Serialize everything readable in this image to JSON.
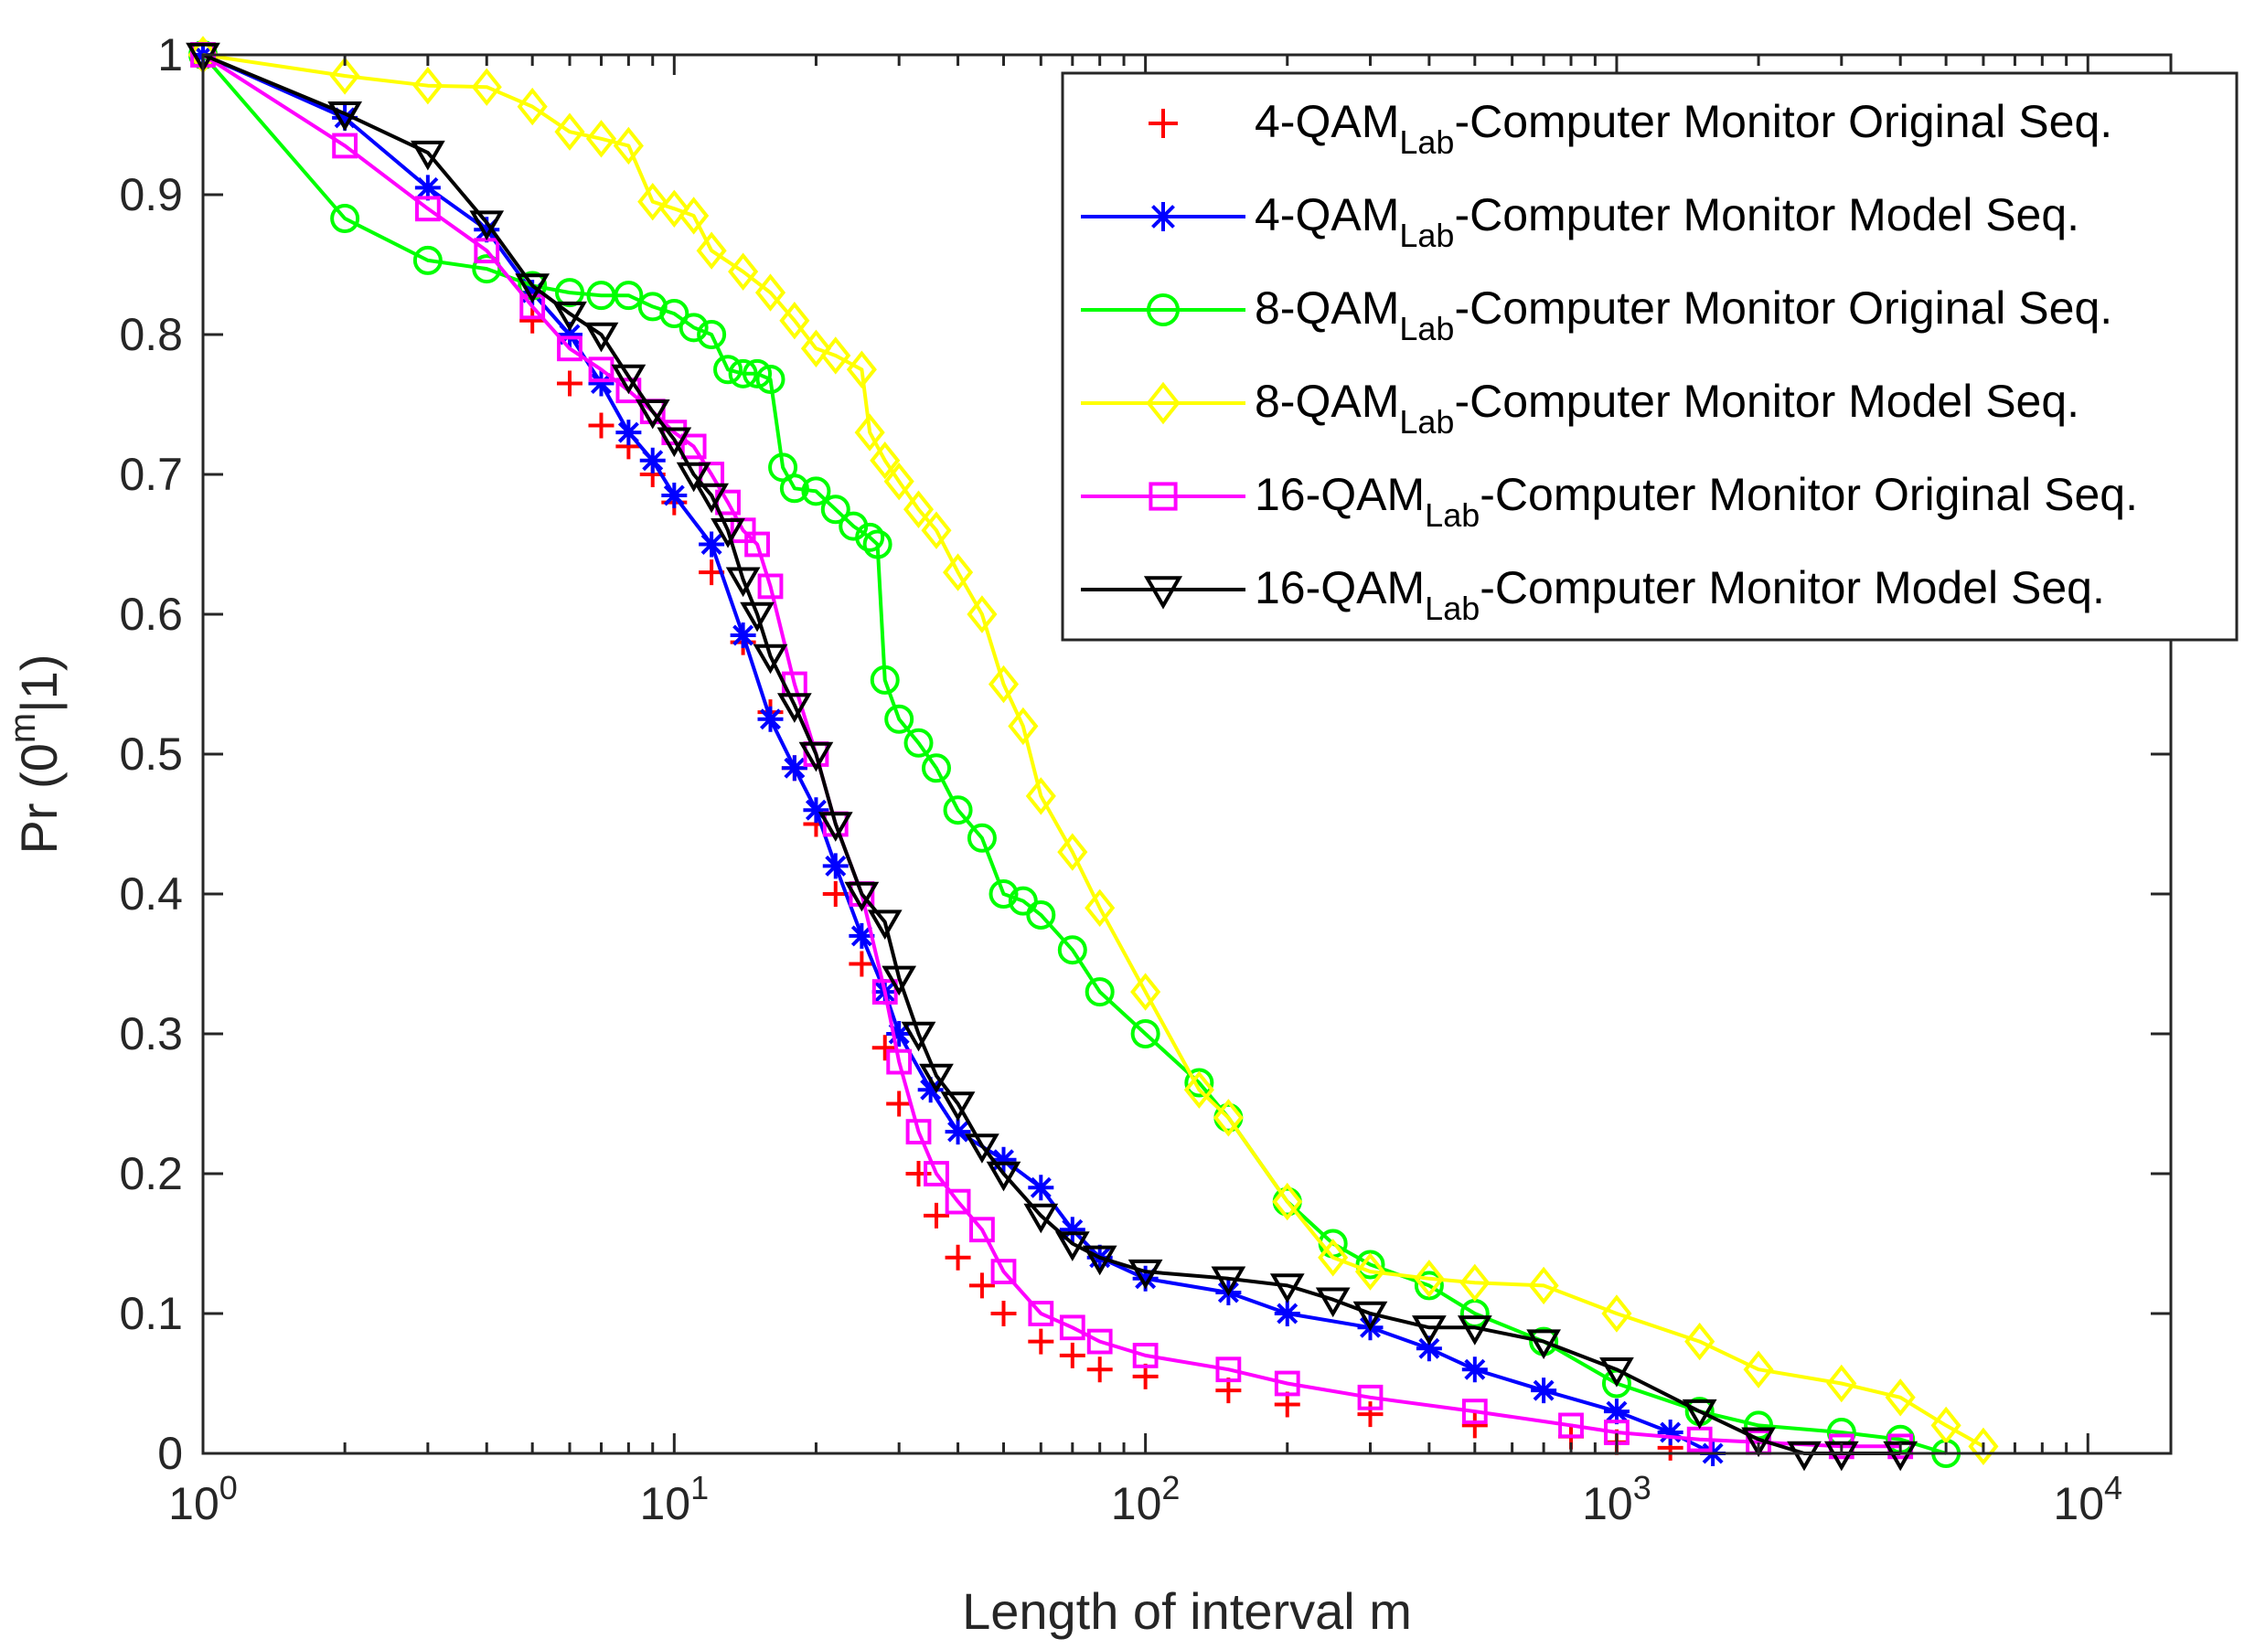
{
  "chart_data": {
    "type": "line",
    "xscale": "log",
    "xlim": [
      1,
      15000
    ],
    "ylim": [
      0,
      1
    ],
    "xlabel": "Length of interval m",
    "ylabel": "Pr (0^m|1)",
    "ylabel_parts": {
      "base": "Pr (0",
      "sup": "m",
      "tail": "|1)"
    },
    "xticks": [
      {
        "value": 1,
        "base": "10",
        "exp": "0"
      },
      {
        "value": 10,
        "base": "10",
        "exp": "1"
      },
      {
        "value": 100,
        "base": "10",
        "exp": "2"
      },
      {
        "value": 1000,
        "base": "10",
        "exp": "3"
      },
      {
        "value": 10000,
        "base": "10",
        "exp": "4"
      }
    ],
    "yticks": [
      {
        "value": 0,
        "label": "0"
      },
      {
        "value": 0.1,
        "label": "0.1"
      },
      {
        "value": 0.2,
        "label": "0.2"
      },
      {
        "value": 0.3,
        "label": "0.3"
      },
      {
        "value": 0.4,
        "label": "0.4"
      },
      {
        "value": 0.5,
        "label": "0.5"
      },
      {
        "value": 0.6,
        "label": "0.6"
      },
      {
        "value": 0.7,
        "label": "0.7"
      },
      {
        "value": 0.8,
        "label": "0.8"
      },
      {
        "value": 0.9,
        "label": "0.9"
      },
      {
        "value": 1,
        "label": "1"
      }
    ],
    "grid": false,
    "legend_position": "top-right",
    "series": [
      {
        "name": "4-QAMLab-Computer Monitor Original Seq.",
        "legend": {
          "pre": "4-QAM",
          "sub": "Lab",
          "post": "-Computer Monitor Original Seq."
        },
        "color": "#ff0000",
        "marker": "plus",
        "line": false,
        "x": [
          1,
          5,
          6,
          7,
          8,
          9,
          10,
          12,
          14,
          16,
          18,
          20,
          22,
          25,
          28,
          30,
          33,
          36,
          40,
          45,
          50,
          60,
          70,
          80,
          100,
          150,
          200,
          300,
          500,
          800,
          1000,
          1300
        ],
        "y": [
          1,
          0.81,
          0.765,
          0.735,
          0.72,
          0.7,
          0.68,
          0.63,
          0.58,
          0.53,
          0.49,
          0.45,
          0.4,
          0.35,
          0.29,
          0.25,
          0.2,
          0.17,
          0.14,
          0.12,
          0.1,
          0.08,
          0.07,
          0.06,
          0.055,
          0.045,
          0.035,
          0.028,
          0.02,
          0.012,
          0.008,
          0.004
        ]
      },
      {
        "name": "4-QAMLab-Computer Monitor Model Seq.",
        "legend": {
          "pre": "4-QAM",
          "sub": "Lab",
          "post": "-Computer Monitor Model Seq."
        },
        "color": "#0000ff",
        "marker": "star",
        "line": true,
        "x": [
          1,
          2,
          3,
          4,
          5,
          6,
          7,
          8,
          9,
          10,
          12,
          14,
          16,
          18,
          20,
          22,
          25,
          28,
          30,
          35,
          40,
          50,
          60,
          70,
          80,
          100,
          150,
          200,
          300,
          400,
          500,
          700,
          1000,
          1300,
          1600
        ],
        "y": [
          1,
          0.955,
          0.905,
          0.875,
          0.83,
          0.8,
          0.765,
          0.73,
          0.71,
          0.685,
          0.65,
          0.585,
          0.525,
          0.49,
          0.46,
          0.42,
          0.37,
          0.33,
          0.3,
          0.26,
          0.23,
          0.21,
          0.19,
          0.16,
          0.14,
          0.125,
          0.115,
          0.1,
          0.09,
          0.075,
          0.06,
          0.045,
          0.03,
          0.015,
          0.0
        ]
      },
      {
        "name": "8-QAMLab-Computer Monitor Original Seq.",
        "legend": {
          "pre": "8-QAM",
          "sub": "Lab",
          "post": "-Computer Monitor Original Seq."
        },
        "color": "#00ff00",
        "marker": "circle",
        "line": true,
        "x": [
          1,
          2,
          3,
          4,
          5,
          6,
          7,
          8,
          9,
          10,
          11,
          12,
          13,
          14,
          15,
          16,
          17,
          18,
          20,
          22,
          24,
          26,
          27,
          28,
          30,
          33,
          36,
          40,
          45,
          50,
          55,
          60,
          70,
          80,
          100,
          130,
          150,
          200,
          250,
          300,
          400,
          500,
          700,
          1000,
          1500,
          2000,
          3000,
          4000,
          5000
        ],
        "y": [
          1,
          0.883,
          0.853,
          0.847,
          0.835,
          0.83,
          0.828,
          0.828,
          0.82,
          0.815,
          0.805,
          0.8,
          0.775,
          0.772,
          0.772,
          0.768,
          0.705,
          0.69,
          0.688,
          0.675,
          0.663,
          0.655,
          0.65,
          0.553,
          0.525,
          0.508,
          0.49,
          0.46,
          0.44,
          0.4,
          0.395,
          0.385,
          0.36,
          0.33,
          0.3,
          0.265,
          0.24,
          0.18,
          0.15,
          0.135,
          0.12,
          0.1,
          0.08,
          0.05,
          0.03,
          0.02,
          0.015,
          0.01,
          0.0
        ]
      },
      {
        "name": "8-QAMLab-Computer Monitor Model Seq.",
        "legend": {
          "pre": "8-QAM",
          "sub": "Lab",
          "post": "-Computer Monitor Model Seq."
        },
        "color": "#ffff00",
        "marker": "diamond",
        "line": true,
        "x": [
          1,
          2,
          3,
          4,
          5,
          6,
          7,
          8,
          9,
          10,
          11,
          12,
          14,
          16,
          18,
          20,
          22,
          25,
          26,
          28,
          30,
          33,
          36,
          40,
          45,
          50,
          55,
          60,
          70,
          80,
          100,
          130,
          150,
          200,
          250,
          300,
          400,
          500,
          700,
          1000,
          1500,
          2000,
          3000,
          4000,
          5000,
          6000
        ],
        "y": [
          1,
          0.985,
          0.978,
          0.977,
          0.963,
          0.945,
          0.94,
          0.935,
          0.895,
          0.89,
          0.885,
          0.86,
          0.845,
          0.83,
          0.81,
          0.79,
          0.785,
          0.775,
          0.73,
          0.71,
          0.695,
          0.675,
          0.66,
          0.63,
          0.6,
          0.55,
          0.52,
          0.47,
          0.43,
          0.39,
          0.33,
          0.26,
          0.24,
          0.18,
          0.14,
          0.13,
          0.125,
          0.122,
          0.12,
          0.1,
          0.08,
          0.06,
          0.05,
          0.04,
          0.02,
          0.005
        ]
      },
      {
        "name": "16-QAMLab-Computer Monitor Original Seq.",
        "legend": {
          "pre": "16-QAM",
          "sub": "Lab",
          "post": "-Computer Monitor Original Seq."
        },
        "color": "#ff00ff",
        "marker": "square",
        "line": true,
        "x": [
          1,
          2,
          3,
          4,
          5,
          6,
          7,
          8,
          9,
          10,
          11,
          12,
          13,
          14,
          15,
          16,
          18,
          20,
          22,
          25,
          28,
          30,
          33,
          36,
          40,
          45,
          50,
          60,
          70,
          80,
          100,
          150,
          200,
          300,
          500,
          800,
          1000,
          1500,
          2000,
          3000,
          4000
        ],
        "y": [
          1,
          0.935,
          0.89,
          0.86,
          0.82,
          0.79,
          0.775,
          0.76,
          0.745,
          0.73,
          0.72,
          0.7,
          0.68,
          0.66,
          0.65,
          0.62,
          0.55,
          0.5,
          0.45,
          0.4,
          0.33,
          0.28,
          0.23,
          0.2,
          0.18,
          0.16,
          0.13,
          0.1,
          0.09,
          0.08,
          0.07,
          0.06,
          0.05,
          0.04,
          0.03,
          0.02,
          0.015,
          0.01,
          0.008,
          0.005,
          0.005
        ]
      },
      {
        "name": "16-QAMLab-Computer Monitor Model Seq.",
        "legend": {
          "pre": "16-QAM",
          "sub": "Lab",
          "post": "-Computer Monitor Model Seq."
        },
        "color": "#000000",
        "marker": "triangle-down",
        "line": true,
        "x": [
          1,
          2,
          3,
          4,
          5,
          6,
          7,
          8,
          9,
          10,
          11,
          12,
          13,
          14,
          15,
          16,
          18,
          20,
          22,
          25,
          28,
          30,
          33,
          36,
          40,
          45,
          50,
          60,
          70,
          80,
          100,
          150,
          200,
          250,
          300,
          400,
          500,
          700,
          1000,
          1500,
          2000,
          2500,
          3000,
          4000
        ],
        "y": [
          1,
          0.958,
          0.93,
          0.88,
          0.835,
          0.815,
          0.8,
          0.77,
          0.745,
          0.725,
          0.7,
          0.685,
          0.66,
          0.625,
          0.6,
          0.57,
          0.535,
          0.5,
          0.45,
          0.4,
          0.38,
          0.34,
          0.3,
          0.27,
          0.25,
          0.22,
          0.2,
          0.17,
          0.15,
          0.14,
          0.13,
          0.125,
          0.12,
          0.11,
          0.1,
          0.09,
          0.09,
          0.08,
          0.06,
          0.03,
          0.01,
          0.0,
          0.0,
          0.0
        ]
      }
    ]
  }
}
